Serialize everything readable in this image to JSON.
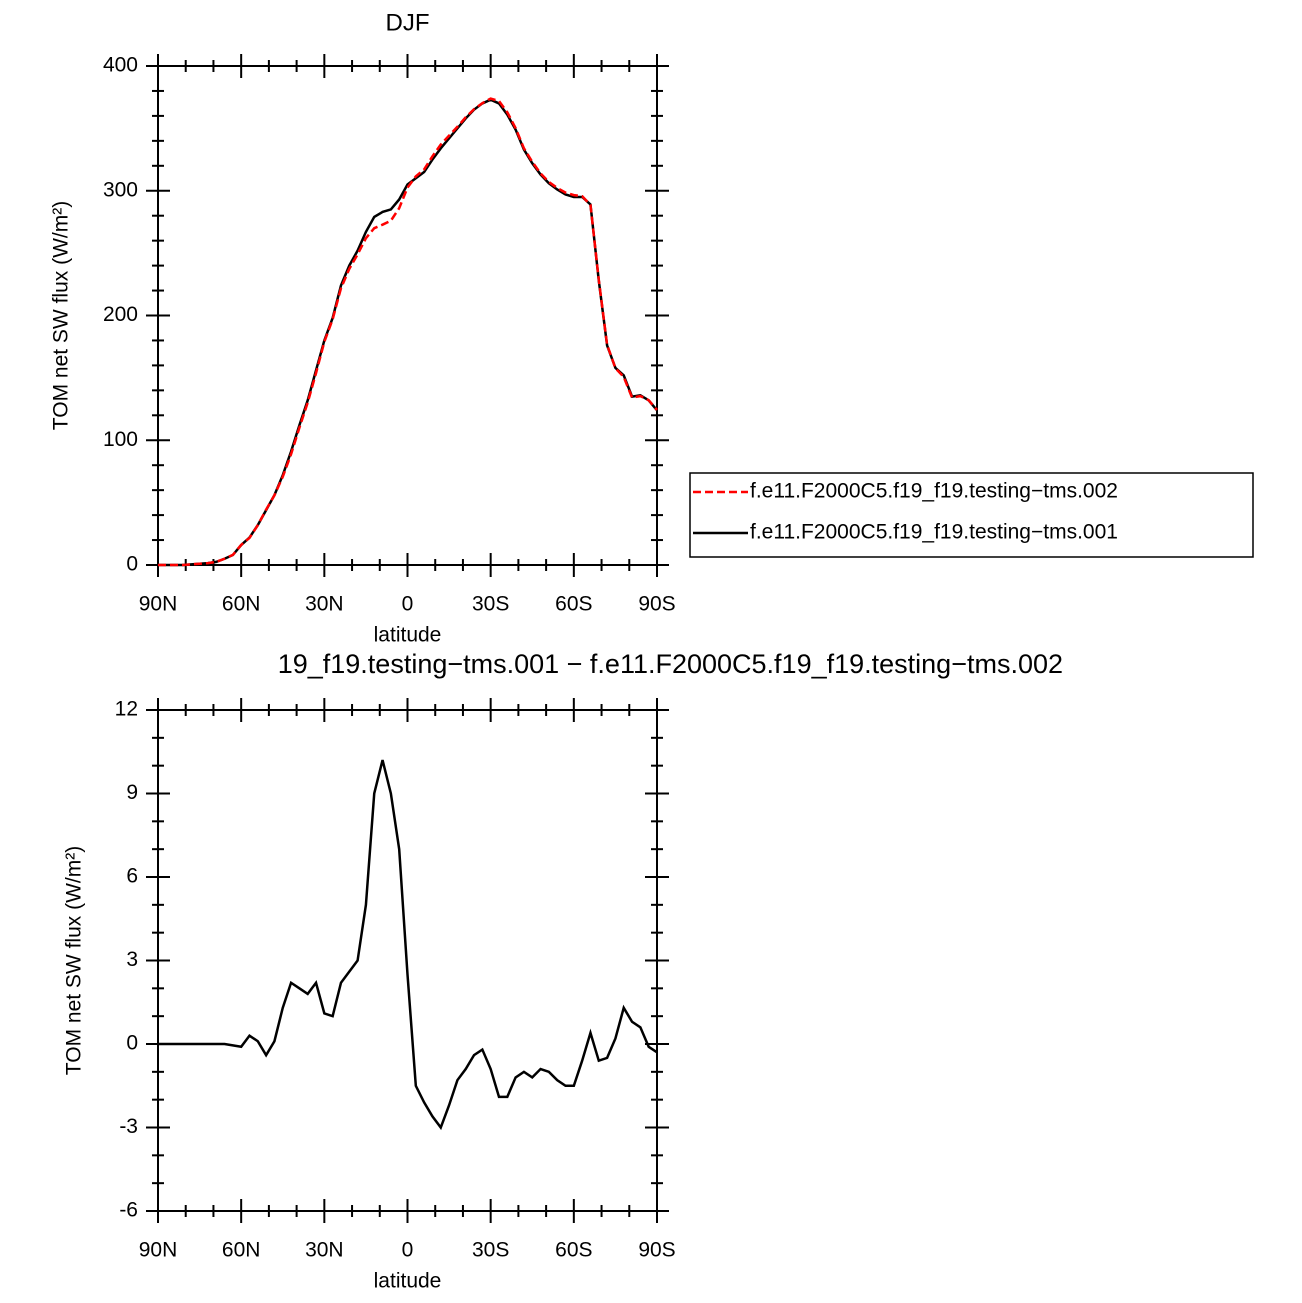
{
  "chart_data": [
    {
      "type": "line",
      "title": "DJF",
      "xlabel": "latitude",
      "ylabel": "TOM net SW flux (W/m²)",
      "x": [
        90,
        87,
        84,
        81,
        78,
        75,
        72,
        69,
        66,
        63,
        60,
        57,
        54,
        51,
        48,
        45,
        42,
        39,
        36,
        33,
        30,
        27,
        24,
        21,
        18,
        15,
        12,
        9,
        6,
        3,
        0,
        -3,
        -6,
        -9,
        -12,
        -15,
        -18,
        -21,
        -24,
        -27,
        -30,
        -33,
        -36,
        -39,
        -42,
        -45,
        -48,
        -51,
        -54,
        -57,
        -60,
        -63,
        -66,
        -69,
        -72,
        -75,
        -78,
        -81,
        -84,
        -87,
        -90
      ],
      "xlim": [
        90,
        -90
      ],
      "xticks": [
        {
          "value": 90,
          "label": "90N"
        },
        {
          "value": 60,
          "label": "60N"
        },
        {
          "value": 30,
          "label": "30N"
        },
        0,
        {
          "value": -30,
          "label": "30S"
        },
        {
          "value": -60,
          "label": "60S"
        },
        {
          "value": -90,
          "label": "90S"
        }
      ],
      "ylim": [
        0,
        400
      ],
      "yticks": [
        0,
        100,
        200,
        300,
        400
      ],
      "series": [
        {
          "name": "f.e11.F2000C5.f19_f19.testing−tms.002",
          "color": "#ff0000",
          "dashed": true,
          "values": [
            0,
            0,
            0,
            0,
            0.5,
            1,
            1.5,
            2.5,
            5,
            8.1,
            16.1,
            21.7,
            31.9,
            44.4,
            55.9,
            70.7,
            88.8,
            110,
            130.2,
            153.8,
            178.9,
            197,
            221.8,
            237.4,
            249,
            262,
            270,
            272.8,
            276,
            286,
            302.5,
            311.5,
            317.1,
            327.6,
            337,
            344.2,
            351.3,
            358.9,
            365.4,
            370.2,
            373.9,
            371.9,
            362.9,
            350.2,
            334,
            323.2,
            313.9,
            307,
            302.3,
            298.5,
            296.5,
            295.6,
            288.6,
            228.6,
            176.5,
            157.8,
            150.7,
            134.2,
            135.4,
            132.1,
            124.3
          ]
        },
        {
          "name": "f.e11.F2000C5.f19_f19.testing−tms.001",
          "color": "#000000",
          "dashed": false,
          "values": [
            0,
            0,
            0,
            0,
            0.5,
            1,
            1.5,
            2.5,
            5,
            8,
            16,
            22,
            32,
            44,
            56,
            72,
            91,
            112,
            132,
            156,
            180,
            198,
            224,
            240,
            252,
            267,
            279,
            283,
            285,
            293,
            305,
            310,
            315,
            325,
            334,
            342,
            350,
            358,
            365,
            370,
            373,
            370,
            361,
            349,
            333,
            322,
            313,
            306,
            301,
            297,
            295,
            295,
            289,
            228,
            176,
            158,
            152,
            135,
            136,
            132,
            124
          ]
        }
      ]
    },
    {
      "type": "line",
      "title": "19_f19.testing−tms.001 − f.e11.F2000C5.f19_f19.testing−tms.002",
      "xlabel": "latitude",
      "ylabel": "TOM net SW flux (W/m²)",
      "x": [
        90,
        87,
        84,
        81,
        78,
        75,
        72,
        69,
        66,
        63,
        60,
        57,
        54,
        51,
        48,
        45,
        42,
        39,
        36,
        33,
        30,
        27,
        24,
        21,
        18,
        15,
        12,
        9,
        6,
        3,
        0,
        -3,
        -6,
        -9,
        -12,
        -15,
        -18,
        -21,
        -24,
        -27,
        -30,
        -33,
        -36,
        -39,
        -42,
        -45,
        -48,
        -51,
        -54,
        -57,
        -60,
        -63,
        -66,
        -69,
        -72,
        -75,
        -78,
        -81,
        -84,
        -87,
        -90
      ],
      "xlim": [
        90,
        -90
      ],
      "xticks": [
        {
          "value": 90,
          "label": "90N"
        },
        {
          "value": 60,
          "label": "60N"
        },
        {
          "value": 30,
          "label": "30N"
        },
        0,
        {
          "value": -30,
          "label": "30S"
        },
        {
          "value": -60,
          "label": "60S"
        },
        {
          "value": -90,
          "label": "90S"
        }
      ],
      "ylim": [
        -6,
        12
      ],
      "yticks": [
        -6,
        -3,
        0,
        3,
        6,
        9,
        12
      ],
      "series": [
        {
          "color": "#000000",
          "dashed": false,
          "values": [
            0,
            0,
            0,
            0,
            0,
            0,
            0,
            0,
            0,
            -0.05,
            -0.1,
            0.3,
            0.1,
            -0.4,
            0.1,
            1.3,
            2.2,
            2,
            1.8,
            2.2,
            1.1,
            1,
            2.2,
            2.6,
            3,
            5,
            9,
            10.2,
            9,
            7,
            2.5,
            -1.5,
            -2.1,
            -2.6,
            -3,
            -2.2,
            -1.3,
            -0.9,
            -0.4,
            -0.2,
            -0.9,
            -1.9,
            -1.9,
            -1.2,
            -1,
            -1.2,
            -0.9,
            -1,
            -1.3,
            -1.5,
            -1.5,
            -0.6,
            0.4,
            -0.6,
            -0.5,
            0.2,
            1.3,
            0.8,
            0.6,
            -0.1,
            -0.3
          ]
        }
      ]
    }
  ]
}
